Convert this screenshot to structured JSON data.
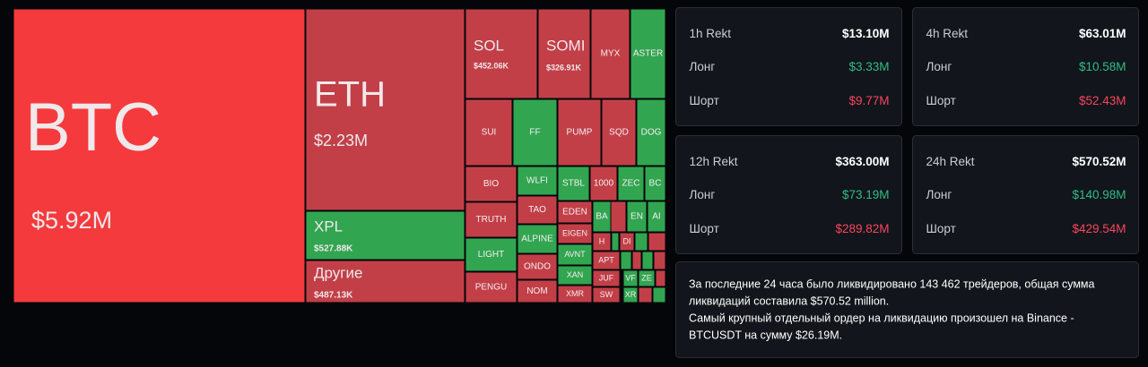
{
  "treemap": {
    "tiles": [
      {
        "label": "BTC",
        "value": "$5.92M"
      },
      {
        "label": "ETH",
        "value": "$2.23M"
      },
      {
        "label": "XPL",
        "value": "$527.88K"
      },
      {
        "label": "Другие",
        "value": "$487.13K"
      },
      {
        "label": "SOL",
        "value": "$452.06K"
      },
      {
        "label": "SOMI",
        "value": "$326.91K"
      },
      {
        "label": "MYX"
      },
      {
        "label": "ASTER"
      },
      {
        "label": "SUI"
      },
      {
        "label": "FF"
      },
      {
        "label": "PUMP"
      },
      {
        "label": "SQD"
      },
      {
        "label": "DOG"
      },
      {
        "label": "BIO"
      },
      {
        "label": "TRUTH"
      },
      {
        "label": "LIGHT"
      },
      {
        "label": "PENGU"
      },
      {
        "label": "WLFI"
      },
      {
        "label": "TAO"
      },
      {
        "label": "ALPINE"
      },
      {
        "label": "ONDO"
      },
      {
        "label": "NOM"
      },
      {
        "label": "STBL"
      },
      {
        "label": "1000"
      },
      {
        "label": "ZEC"
      },
      {
        "label": "BC"
      },
      {
        "label": "EDEN"
      },
      {
        "label": "EIGEN"
      },
      {
        "label": "AVNT"
      },
      {
        "label": "XAN"
      },
      {
        "label": "XMR"
      },
      {
        "label": "BA"
      },
      {
        "label": "EN"
      },
      {
        "label": "AI"
      },
      {
        "label": "H"
      },
      {
        "label": "DI"
      },
      {
        "label": "APT"
      },
      {
        "label": "JUF"
      },
      {
        "label": "SW"
      },
      {
        "label": "VF"
      },
      {
        "label": "ZE"
      },
      {
        "label": "XR"
      }
    ]
  },
  "cards": [
    {
      "title": "1h Rekt",
      "total": "$13.10M",
      "long_label": "Лонг",
      "long": "$3.33M",
      "short_label": "Шорт",
      "short": "$9.77M"
    },
    {
      "title": "4h Rekt",
      "total": "$63.01M",
      "long_label": "Лонг",
      "long": "$10.58M",
      "short_label": "Шорт",
      "short": "$52.43M"
    },
    {
      "title": "12h Rekt",
      "total": "$363.00M",
      "long_label": "Лонг",
      "long": "$73.19M",
      "short_label": "Шорт",
      "short": "$289.82M"
    },
    {
      "title": "24h Rekt",
      "total": "$570.52M",
      "long_label": "Лонг",
      "long": "$140.98M",
      "short_label": "Шорт",
      "short": "$429.54M"
    }
  ],
  "summary": {
    "lines": [
      "За последние 24 часа было ликвидировано 143 462 трейдеров, общая сумма",
      "ликвидаций составила $570.52 million.",
      "Самый крупный отдельный ордер на ликвидацию произошел на Binance -",
      "BTCUSDT на сумму $26.19M."
    ]
  }
}
